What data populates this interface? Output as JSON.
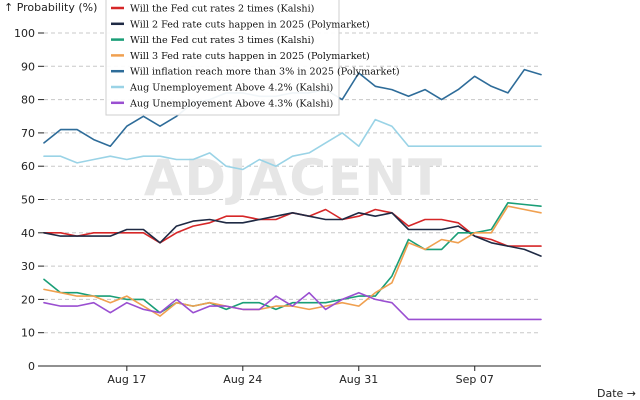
{
  "chart_data": {
    "type": "line",
    "ylabel": "↑ Probability (%)",
    "xlabel": "Date →",
    "ylim": [
      0,
      100
    ],
    "yticks": [
      0,
      10,
      20,
      30,
      40,
      50,
      60,
      70,
      80,
      90,
      100
    ],
    "x_start": "2025-08-12",
    "x_ticks": [
      {
        "date": "2025-08-17",
        "label": "Aug 17"
      },
      {
        "date": "2025-08-24",
        "label": "Aug 24"
      },
      {
        "date": "2025-08-31",
        "label": "Aug 31"
      },
      {
        "date": "2025-09-07",
        "label": "Sep 07"
      }
    ],
    "grid": true,
    "legend_position": "top-center",
    "watermark": "ADJACENT",
    "series": [
      {
        "name": "Will the Fed cut rates 2 times (Kalshi)",
        "color": "#d62728",
        "values": [
          40,
          40,
          39,
          40,
          40,
          40,
          40,
          37,
          40,
          42,
          43,
          45,
          45,
          44,
          44,
          46,
          45,
          47,
          44,
          45,
          47,
          46,
          42,
          44,
          44,
          43,
          39,
          38,
          36,
          36,
          36
        ]
      },
      {
        "name": "Will 2 Fed rate cuts happen in 2025 (Polymarket)",
        "color": "#1f2a44",
        "values": [
          40,
          39,
          39,
          39,
          39,
          41,
          41,
          37,
          42,
          43.5,
          44,
          43,
          43,
          44,
          45,
          46,
          45,
          44,
          44,
          46,
          45,
          46,
          41,
          41,
          41,
          42,
          39,
          37,
          36,
          35,
          33
        ]
      },
      {
        "name": "Will the Fed cut rates 3 times (Kalshi)",
        "color": "#1a9e77",
        "values": [
          26,
          22,
          22,
          21,
          21,
          20,
          20,
          16,
          19,
          18,
          19,
          17,
          19,
          19,
          17,
          19,
          19,
          19,
          20,
          21,
          21,
          27,
          38,
          35,
          35,
          40,
          40,
          41,
          49,
          48.5,
          48
        ]
      },
      {
        "name": "Will 3 Fed rate cuts happen in 2025 (Polymarket)",
        "color": "#f0a050",
        "values": [
          23,
          22,
          21,
          21,
          19,
          21,
          18,
          15,
          19,
          18,
          19,
          18,
          17,
          17,
          18,
          18,
          17,
          18,
          19,
          18,
          22,
          25,
          37,
          35,
          38,
          37,
          40,
          40,
          48,
          47,
          46
        ]
      },
      {
        "name": "Will inflation reach more than 3% in 2025 (Polymarket)",
        "color": "#2e6c99",
        "values": [
          67,
          71,
          71,
          68,
          66,
          72,
          75,
          72,
          75,
          79,
          80,
          82,
          82,
          81,
          81,
          82,
          82,
          83,
          80,
          88,
          84,
          83,
          81,
          83,
          80,
          83,
          87,
          84,
          82,
          89,
          87.5
        ]
      },
      {
        "name": "Aug Unemployement Above 4.2% (Kalshi)",
        "color": "#9ad3e6",
        "values": [
          63,
          63,
          61,
          62,
          63,
          62,
          63,
          63,
          62,
          62,
          64,
          60,
          59,
          62,
          60,
          63,
          64,
          67,
          70,
          66,
          74,
          72,
          66,
          66,
          66,
          66,
          66,
          66,
          66,
          66,
          66
        ]
      },
      {
        "name": "Aug Unemployement Above 4.3% (Kalshi)",
        "color": "#9a4fd1",
        "values": [
          19,
          18,
          18,
          19,
          16,
          19,
          17,
          16,
          20,
          16,
          18,
          18,
          17,
          17,
          21,
          18,
          22,
          17,
          20,
          22,
          20,
          19,
          14,
          14,
          14,
          14,
          14,
          14,
          14,
          14,
          14
        ]
      }
    ]
  }
}
